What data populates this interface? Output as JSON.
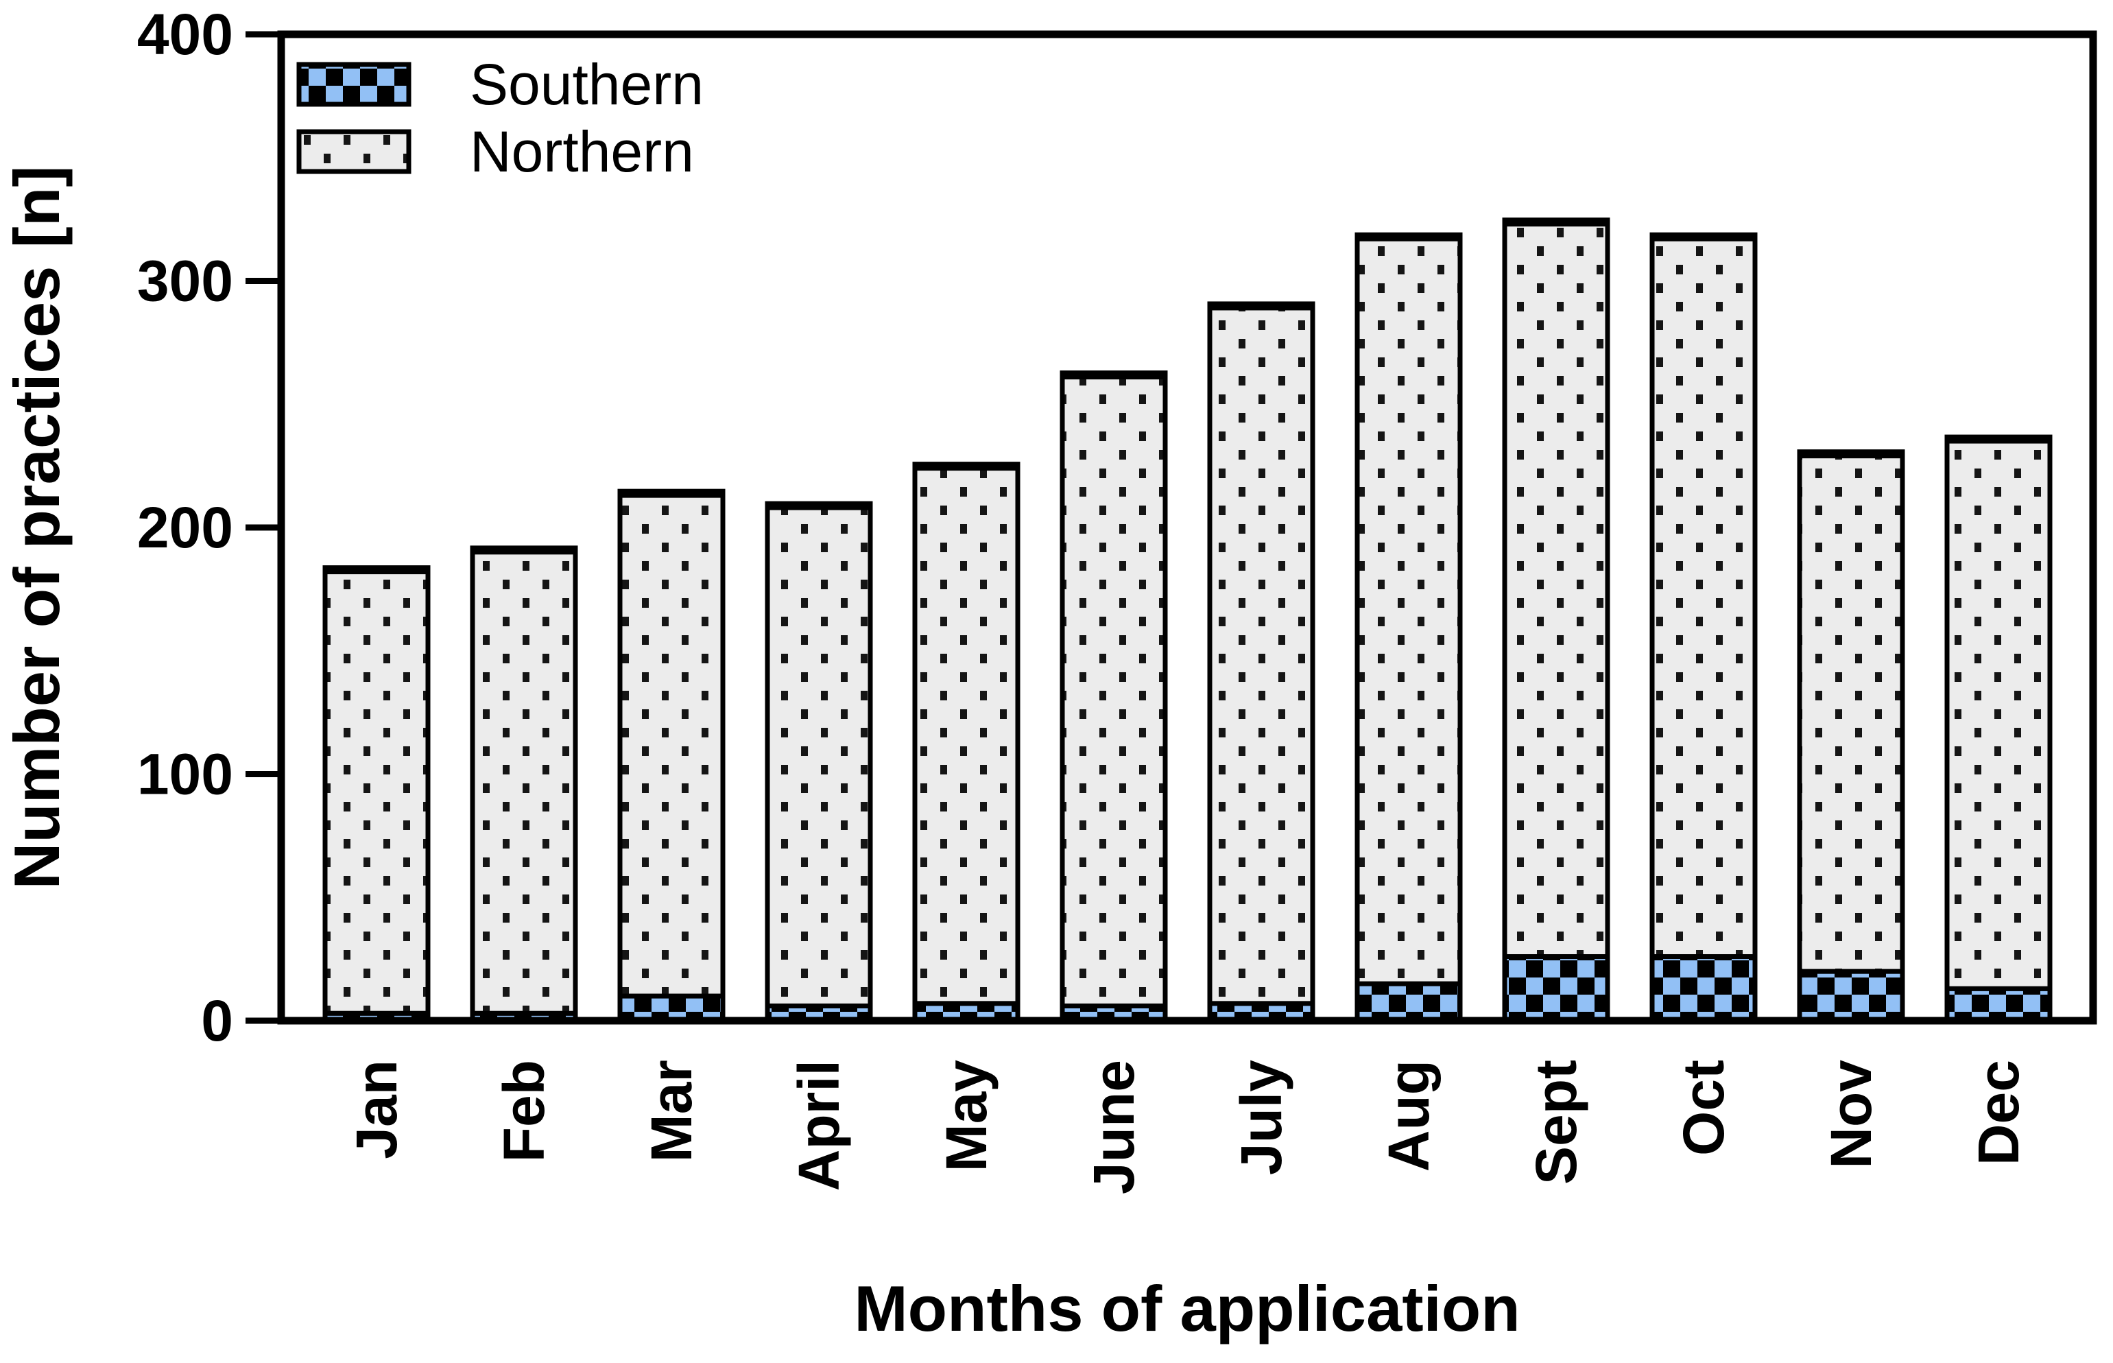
{
  "figure": {
    "y_axis_title": "Number of practices [n]",
    "x_axis_title": "Months of application",
    "legend": {
      "southern_label": "Southern",
      "northern_label": "Northern"
    },
    "colors": {
      "southern_blue": "#92C0F5",
      "northern_gray": "#ECECEC",
      "pattern_black": "#000000",
      "axis_black": "#000000"
    }
  },
  "chart_data": {
    "type": "bar",
    "stacked": true,
    "title": "",
    "xlabel": "Months of application",
    "ylabel": "Number of practices [n]",
    "categories": [
      "Jan",
      "Feb",
      "Mar",
      "April",
      "May",
      "June",
      "July",
      "Aug",
      "Sept",
      "Oct",
      "Nov",
      "Dec"
    ],
    "series": [
      {
        "name": "Southern",
        "pattern": "blue-black-checkerboard",
        "fill": "#92C0F5",
        "values": [
          3,
          3,
          10,
          6,
          7,
          6,
          7,
          15,
          26,
          26,
          20,
          13
        ]
      },
      {
        "name": "Northern",
        "pattern": "light-gray-with-black-square-dots",
        "fill": "#ECECEC",
        "values": [
          180,
          188,
          204,
          203,
          218,
          256,
          283,
          303,
          298,
          292,
          210,
          223
        ]
      }
    ],
    "stack_totals": [
      183,
      191,
      214,
      209,
      225,
      262,
      290,
      318,
      324,
      318,
      230,
      236
    ],
    "ylim": [
      0,
      400
    ],
    "yticks": [
      0,
      100,
      200,
      300,
      400
    ],
    "grid": false,
    "legend_position": "top-left-inside",
    "bar_outline_color": "#000000",
    "x_tick_label_rotation_deg": -90
  }
}
